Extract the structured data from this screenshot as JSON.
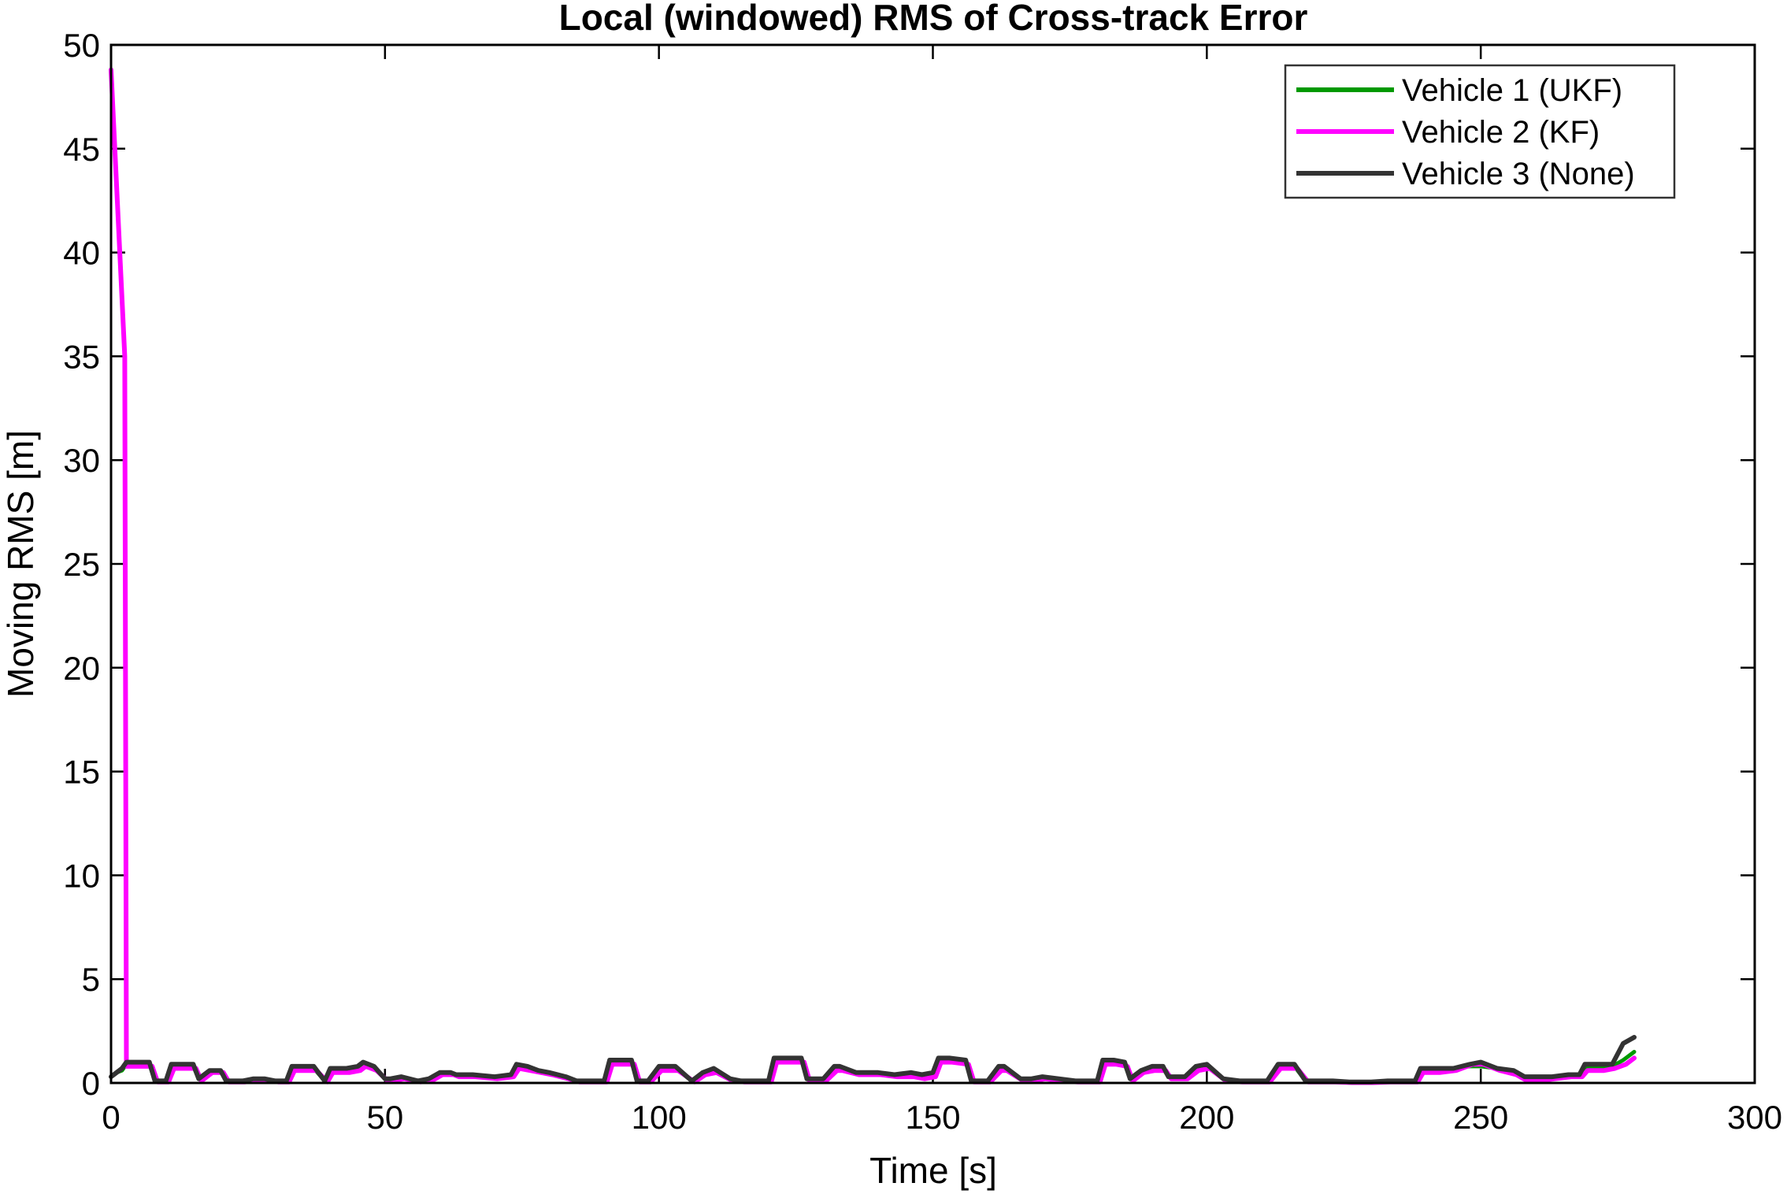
{
  "chart_data": {
    "type": "line",
    "title": "Local (windowed) RMS of Cross-track Error",
    "xlabel": "Time [s]",
    "ylabel": "Moving RMS [m]",
    "xlim": [
      0,
      300
    ],
    "ylim": [
      0,
      50
    ],
    "xticks": [
      0,
      50,
      100,
      150,
      200,
      250,
      300
    ],
    "yticks": [
      0,
      5,
      10,
      15,
      20,
      25,
      30,
      35,
      40,
      45,
      50
    ],
    "grid": false,
    "legend_position": "top-right",
    "series": [
      {
        "name": "Vehicle 1 (UKF)",
        "color": "#009900",
        "x": [
          0,
          1,
          2,
          2.8,
          4,
          6,
          7,
          8,
          10,
          11,
          13,
          15,
          16,
          18,
          20,
          21,
          24,
          26,
          28,
          30,
          32,
          33,
          35,
          37,
          39,
          40,
          43,
          45,
          46,
          48,
          50,
          51,
          53,
          56,
          58,
          60,
          62,
          63,
          66,
          70,
          73,
          74,
          76,
          78,
          80,
          83,
          85,
          88,
          90,
          91,
          93,
          95,
          96,
          98,
          100,
          102,
          103,
          106,
          108,
          110,
          113,
          115,
          117,
          120,
          121,
          123,
          126,
          127,
          130,
          132,
          133,
          136,
          138,
          140,
          143,
          146,
          148,
          150,
          151,
          153,
          156,
          157,
          160,
          162,
          163,
          166,
          168,
          170,
          173,
          176,
          178,
          180,
          181,
          183,
          185,
          186,
          188,
          190,
          192,
          193,
          196,
          198,
          200,
          203,
          206,
          210,
          211,
          213,
          216,
          218,
          220,
          223,
          226,
          230,
          233,
          236,
          238,
          239,
          242,
          245,
          248,
          250,
          253,
          256,
          258,
          260,
          263,
          266,
          268,
          269,
          272,
          274,
          276,
          278
        ],
        "y": [
          0.3,
          0.5,
          0.6,
          0.9,
          0.9,
          0.9,
          0.9,
          0.1,
          0.1,
          0.8,
          0.8,
          0.8,
          0.2,
          0.6,
          0.6,
          0.1,
          0.1,
          0.2,
          0.2,
          0.1,
          0.1,
          0.7,
          0.7,
          0.7,
          0.1,
          0.6,
          0.6,
          0.7,
          0.9,
          0.7,
          0.2,
          0.2,
          0.3,
          0.1,
          0.2,
          0.5,
          0.5,
          0.4,
          0.4,
          0.3,
          0.4,
          0.8,
          0.7,
          0.6,
          0.5,
          0.3,
          0.1,
          0.1,
          0.1,
          1.0,
          1.0,
          1.0,
          0.1,
          0.1,
          0.7,
          0.7,
          0.7,
          0.1,
          0.5,
          0.6,
          0.2,
          0.1,
          0.1,
          0.1,
          1.1,
          1.1,
          1.1,
          0.2,
          0.2,
          0.7,
          0.7,
          0.5,
          0.5,
          0.5,
          0.4,
          0.4,
          0.3,
          0.4,
          1.1,
          1.1,
          1.0,
          0.1,
          0.1,
          0.7,
          0.7,
          0.2,
          0.2,
          0.3,
          0.2,
          0.1,
          0.1,
          0.1,
          1.0,
          1.0,
          0.9,
          0.2,
          0.6,
          0.7,
          0.7,
          0.3,
          0.3,
          0.7,
          0.8,
          0.2,
          0.1,
          0.1,
          0.1,
          0.8,
          0.8,
          0.1,
          0.1,
          0.1,
          0.05,
          0.05,
          0.1,
          0.1,
          0.1,
          0.6,
          0.6,
          0.7,
          0.8,
          0.8,
          0.7,
          0.5,
          0.3,
          0.3,
          0.3,
          0.4,
          0.4,
          0.7,
          0.7,
          0.8,
          1.1,
          1.5
        ]
      },
      {
        "name": "Vehicle 2 (KF)",
        "color": "#ff00ff",
        "x": [
          0,
          2.5,
          2.8,
          3,
          4,
          6,
          7.5,
          8.5,
          10.5,
          11.5,
          13.5,
          15.5,
          16.5,
          18.5,
          20.5,
          21.5,
          24.5,
          26.5,
          28.5,
          30.5,
          32.5,
          33.5,
          35.5,
          37.5,
          39.5,
          40.5,
          43.5,
          45.5,
          46.5,
          48.5,
          50.5,
          51.5,
          53.5,
          56.5,
          58.5,
          60.5,
          62.5,
          63.5,
          66.5,
          70.5,
          73.5,
          74.5,
          76.5,
          78.5,
          80.5,
          83.5,
          85.5,
          88.5,
          90.5,
          91.5,
          93.5,
          95.5,
          96.5,
          98.5,
          100.5,
          102.5,
          103.5,
          106.5,
          108.5,
          110.5,
          113.5,
          115.5,
          117.5,
          120.5,
          121.5,
          123.5,
          126.5,
          127.5,
          130.5,
          132.5,
          133.5,
          136.5,
          138.5,
          140.5,
          143.5,
          146.5,
          148.5,
          150.5,
          151.5,
          153.5,
          156.5,
          157.5,
          160.5,
          162.5,
          163.5,
          166.5,
          168.5,
          170.5,
          173.5,
          176.5,
          178.5,
          180.5,
          181.5,
          183.5,
          185.5,
          186.5,
          188.5,
          190.5,
          192.5,
          193.5,
          196.5,
          198.5,
          200.5,
          203.5,
          206.5,
          210.5,
          211.5,
          213.5,
          216.5,
          218.5,
          220.5,
          223.5,
          226.5,
          230.5,
          233.5,
          236.5,
          238.5,
          239.5,
          242.5,
          245.5,
          248.5,
          250.5,
          253.5,
          256.5,
          258.5,
          260.5,
          263.5,
          266.5,
          268.5,
          269.5,
          272.5,
          274.5,
          276.5,
          278
        ],
        "y": [
          48.8,
          35,
          0.8,
          0.8,
          0.8,
          0.8,
          0.8,
          0.05,
          0.05,
          0.7,
          0.7,
          0.7,
          0.1,
          0.5,
          0.5,
          0.05,
          0.05,
          0.1,
          0.1,
          0.05,
          0.05,
          0.6,
          0.6,
          0.6,
          0.05,
          0.5,
          0.5,
          0.6,
          0.8,
          0.6,
          0.1,
          0.1,
          0.2,
          0.05,
          0.1,
          0.4,
          0.4,
          0.3,
          0.3,
          0.2,
          0.3,
          0.7,
          0.6,
          0.5,
          0.4,
          0.2,
          0.05,
          0.05,
          0.05,
          0.9,
          0.9,
          0.9,
          0.05,
          0.05,
          0.6,
          0.6,
          0.6,
          0.05,
          0.4,
          0.5,
          0.1,
          0.05,
          0.05,
          0.05,
          1.0,
          1.0,
          1.0,
          0.1,
          0.1,
          0.6,
          0.6,
          0.4,
          0.4,
          0.4,
          0.3,
          0.3,
          0.2,
          0.3,
          1.0,
          1.0,
          0.9,
          0.05,
          0.05,
          0.6,
          0.6,
          0.1,
          0.1,
          0.2,
          0.1,
          0.05,
          0.05,
          0.05,
          0.9,
          0.9,
          0.8,
          0.1,
          0.5,
          0.6,
          0.6,
          0.2,
          0.2,
          0.6,
          0.7,
          0.1,
          0.05,
          0.05,
          0.05,
          0.7,
          0.7,
          0.05,
          0.05,
          0.05,
          0.02,
          0.02,
          0.05,
          0.05,
          0.05,
          0.5,
          0.5,
          0.6,
          0.9,
          0.9,
          0.6,
          0.4,
          0.1,
          0.1,
          0.2,
          0.3,
          0.3,
          0.6,
          0.6,
          0.7,
          0.9,
          1.2
        ]
      },
      {
        "name": "Vehicle 3 (None)",
        "color": "#333333",
        "x": [
          0,
          1,
          2,
          2.8,
          4,
          6,
          7,
          8,
          10,
          11,
          13,
          15,
          16,
          18,
          20,
          21,
          24,
          26,
          28,
          30,
          32,
          33,
          35,
          37,
          39,
          40,
          43,
          45,
          46,
          48,
          50,
          51,
          53,
          56,
          58,
          60,
          62,
          63,
          66,
          70,
          73,
          74,
          76,
          78,
          80,
          83,
          85,
          88,
          90,
          91,
          93,
          95,
          96,
          98,
          100,
          102,
          103,
          106,
          108,
          110,
          113,
          115,
          117,
          120,
          121,
          123,
          126,
          127,
          130,
          132,
          133,
          136,
          138,
          140,
          143,
          146,
          148,
          150,
          151,
          153,
          156,
          157,
          160,
          162,
          163,
          166,
          168,
          170,
          173,
          176,
          178,
          180,
          181,
          183,
          185,
          186,
          188,
          190,
          192,
          193,
          196,
          198,
          200,
          203,
          206,
          210,
          211,
          213,
          216,
          218,
          220,
          223,
          226,
          230,
          233,
          236,
          238,
          239,
          242,
          245,
          248,
          250,
          253,
          256,
          258,
          260,
          263,
          266,
          268,
          269,
          272,
          274,
          276,
          278
        ],
        "y": [
          0.3,
          0.5,
          0.7,
          1.0,
          1.0,
          1.0,
          1.0,
          0.1,
          0.1,
          0.9,
          0.9,
          0.9,
          0.2,
          0.6,
          0.6,
          0.1,
          0.1,
          0.2,
          0.2,
          0.1,
          0.1,
          0.8,
          0.8,
          0.8,
          0.1,
          0.7,
          0.7,
          0.8,
          1.0,
          0.8,
          0.2,
          0.2,
          0.3,
          0.1,
          0.2,
          0.5,
          0.5,
          0.4,
          0.4,
          0.3,
          0.4,
          0.9,
          0.8,
          0.6,
          0.5,
          0.3,
          0.1,
          0.1,
          0.1,
          1.1,
          1.1,
          1.1,
          0.1,
          0.1,
          0.8,
          0.8,
          0.8,
          0.1,
          0.5,
          0.7,
          0.2,
          0.1,
          0.1,
          0.1,
          1.2,
          1.2,
          1.2,
          0.2,
          0.2,
          0.8,
          0.8,
          0.5,
          0.5,
          0.5,
          0.4,
          0.5,
          0.4,
          0.5,
          1.2,
          1.2,
          1.1,
          0.1,
          0.1,
          0.8,
          0.8,
          0.2,
          0.2,
          0.3,
          0.2,
          0.1,
          0.1,
          0.1,
          1.1,
          1.1,
          1.0,
          0.2,
          0.6,
          0.8,
          0.8,
          0.3,
          0.3,
          0.8,
          0.9,
          0.2,
          0.1,
          0.1,
          0.1,
          0.9,
          0.9,
          0.1,
          0.1,
          0.1,
          0.05,
          0.05,
          0.1,
          0.1,
          0.1,
          0.7,
          0.7,
          0.7,
          0.9,
          1.0,
          0.7,
          0.6,
          0.3,
          0.3,
          0.3,
          0.4,
          0.4,
          0.9,
          0.9,
          0.9,
          1.9,
          2.2
        ]
      }
    ]
  }
}
